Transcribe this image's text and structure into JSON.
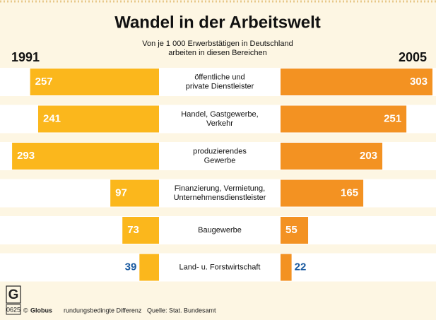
{
  "chart_data": {
    "type": "butterfly",
    "title": "Wandel in der Arbeitswelt",
    "subtitle": [
      "Von je 1 000 Erwerbstätigen in Deutschland",
      "arbeiten in diesen Bereichen"
    ],
    "categories": [
      "öffentliche und\nprivate Dienstleister",
      "Handel, Gastgewerbe,\nVerkehr",
      "produzierendes\nGewerbe",
      "Finanzierung, Vermietung,\nUnternehmensdienstleister",
      "Baugewerbe",
      "Land- u. Forstwirtschaft"
    ],
    "series": [
      {
        "name": "1991",
        "color": "#fbb71c",
        "values": [
          257,
          241,
          293,
          97,
          73,
          39
        ]
      },
      {
        "name": "2005",
        "color": "#f39222",
        "values": [
          303,
          251,
          203,
          165,
          55,
          22
        ]
      }
    ],
    "footer": {
      "logo": "G",
      "code": "0625",
      "copyright_sign": "©",
      "publisher": "Globus",
      "note": "rundungsbedingte Differenz",
      "source": "Quelle: Stat. Bundesamt"
    }
  }
}
